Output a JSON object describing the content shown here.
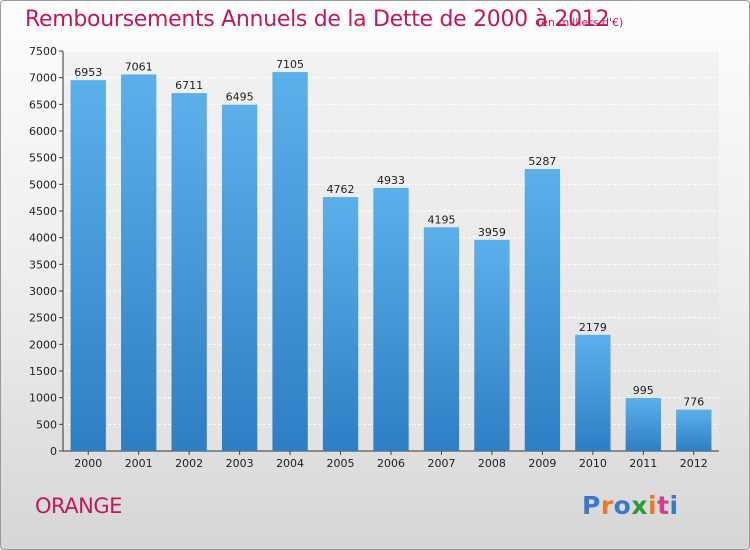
{
  "chart_data": {
    "type": "bar",
    "title": "Remboursements Annuels de la Dette de 2000 à 2012",
    "subtitle": "(en milliers d'€)",
    "categories": [
      "2000",
      "2001",
      "2002",
      "2003",
      "2004",
      "2005",
      "2006",
      "2007",
      "2008",
      "2009",
      "2010",
      "2011",
      "2012"
    ],
    "values": [
      6953,
      7061,
      6711,
      6495,
      7105,
      4762,
      4933,
      4195,
      3959,
      5287,
      2179,
      995,
      776
    ],
    "ylim": [
      0,
      7500
    ],
    "yticks": [
      0,
      500,
      1000,
      1500,
      2000,
      2500,
      3000,
      3500,
      4000,
      4500,
      5000,
      5500,
      6000,
      6500,
      7000,
      7500
    ],
    "grid": true,
    "bar_color": "#4a9fdf",
    "xlabel": "",
    "ylabel": ""
  },
  "footer": {
    "city": "ORANGE",
    "logo_text": "Proxiti"
  },
  "colors": {
    "accent": "#c2185b",
    "logo": [
      "#3a78c9",
      "#e8782a",
      "#3a78c9",
      "#2e9a3c",
      "#e8782a",
      "#d83c8a",
      "#3a78c9"
    ]
  }
}
